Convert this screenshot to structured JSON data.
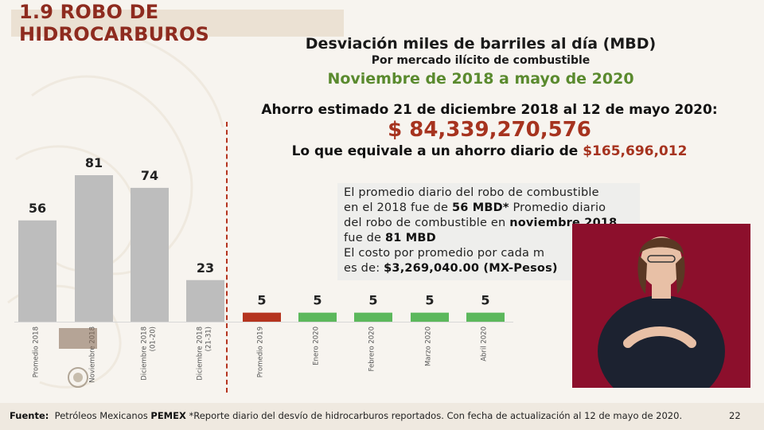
{
  "slide": {
    "title": "1.9 ROBO DE HIDROCARBUROS",
    "heading": "Desviación miles de barriles al día (MBD)",
    "subheading": "Por mercado ilícito de combustible",
    "period": "Noviembre de 2018 a mayo de 2020",
    "savings_label": "Ahorro estimado 21 de diciembre 2018 al 12 de mayo 2020:",
    "savings_amount": "$ 84,339,270,576",
    "daily_prefix": "Lo que equivale a un ahorro diario de ",
    "daily_amount": "$165,696,012",
    "page_number": "22"
  },
  "info_box": {
    "line1": "El promedio diario del robo de combustible",
    "line2_a": "en el 2018 fue de ",
    "line2_b": "56 MBD*",
    "line2_c": " Promedio diario",
    "line3_a": "del robo de combustible en ",
    "line3_b": "noviembre 2018",
    "line4_a": "fue de ",
    "line4_b": "81 MBD",
    "line5": "El costo por promedio por cada m",
    "line6_a": "es de: ",
    "line6_b": "$3,269,040.00  (MX-Pesos)"
  },
  "footer": {
    "label": "Fuente:",
    "source_a": "Petróleos Mexicanos ",
    "source_b": "PEMEX",
    "source_c": " *Reporte diario del desvío de hidrocarburos reportados. Con fecha de actualización  al 12 de mayo de 2020."
  },
  "colors": {
    "gray_bar": "#bdbdbd",
    "red_bar": "#b5341f",
    "green_bar": "#5cb85c",
    "accent": "#a6331f",
    "green_text": "#5a8a2e"
  },
  "chart_data": {
    "type": "bar",
    "categories": [
      "Promedio 2018",
      "Noviembre 2018",
      "Diciembre 2018 (01-20)",
      "Diciembre 2018 (21-31)",
      "Promedio 2019",
      "Enero 2020",
      "Febrero 2020",
      "Marzo 2020",
      "Abril 2020"
    ],
    "category_lines": [
      [
        "Promedio 2018"
      ],
      [
        "Noviembre 2018"
      ],
      [
        "Diciembre 2018",
        "(01-20)"
      ],
      [
        "Diciembre 2018",
        "(21-31)"
      ],
      [
        "Promedio 2019"
      ],
      [
        "Enero 2020"
      ],
      [
        "Febrero 2020"
      ],
      [
        "Marzo 2020"
      ],
      [
        "Abril 2020"
      ]
    ],
    "values": [
      56,
      81,
      74,
      23,
      5,
      5,
      5,
      5,
      5
    ],
    "bar_colors": [
      "gray",
      "gray",
      "gray",
      "gray",
      "red",
      "green",
      "green",
      "green",
      "green"
    ],
    "ylabel": "Desviación miles de barriles al día (MBD)",
    "ylim": [
      0,
      81
    ],
    "grid": false,
    "legend": "none"
  }
}
